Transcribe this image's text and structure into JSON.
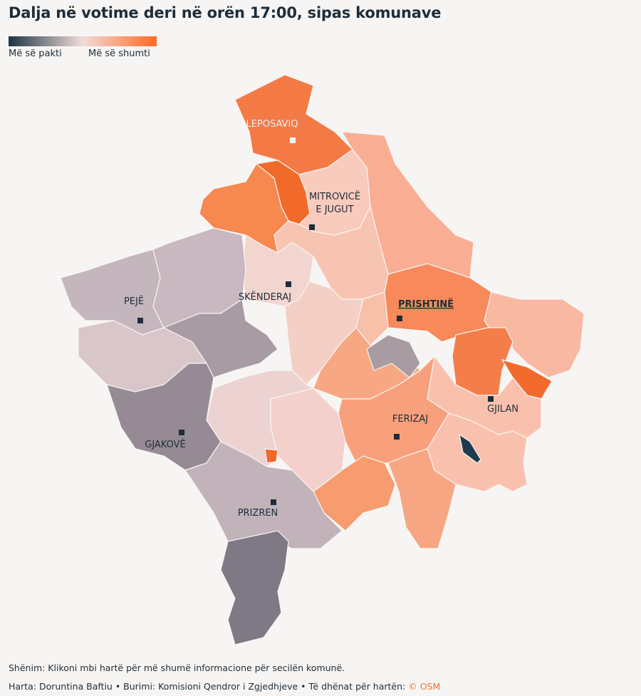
{
  "header": {
    "title": "Dalja në votime deri në orën 17:00, sipas komunave"
  },
  "legend": {
    "low": "Më së pakti",
    "high": "Më së shumti"
  },
  "labels": [
    {
      "lines": [
        "LEPOSAVIQ"
      ]
    },
    {
      "lines": [
        "MITROVICË",
        "E JUGUT"
      ]
    },
    {
      "lines": [
        "SKËNDERAJ"
      ]
    },
    {
      "lines": [
        "PEJË"
      ]
    },
    {
      "lines": [
        "PRISHTINË"
      ]
    },
    {
      "lines": [
        "GJILAN"
      ]
    },
    {
      "lines": [
        "FERIZAJ"
      ]
    },
    {
      "lines": [
        "GJAKOVË"
      ]
    },
    {
      "lines": [
        "PRIZREN"
      ]
    }
  ],
  "footer": {
    "note": "Shënim: Klikoni mbi hartë për më shumë informacione për secilën komunë.",
    "credits": "Harta: Doruntina Baftiu • Burimi: Komisioni Qendror i Zgjedhjeve • Të dhënat për hartën:",
    "osm": "© OSM"
  }
}
